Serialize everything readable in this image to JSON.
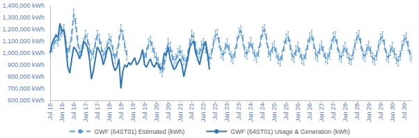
{
  "chart_data": {
    "type": "line",
    "categories": [
      "Jul 15",
      null,
      null,
      null,
      null,
      null,
      "Jan 16",
      null,
      null,
      null,
      null,
      null,
      "Jul 16",
      null,
      null,
      null,
      null,
      null,
      "Jan 17",
      null,
      null,
      null,
      null,
      null,
      "Jul 17",
      null,
      null,
      null,
      null,
      null,
      "Jan 18",
      null,
      null,
      null,
      null,
      null,
      "Jul 18",
      null,
      null,
      null,
      null,
      null,
      "Jan 19",
      null,
      null,
      null,
      null,
      null,
      "Jul 19",
      null,
      null,
      null,
      null,
      null,
      "Jan 20",
      null,
      null,
      null,
      null,
      null,
      "Jul 20",
      null,
      null,
      null,
      null,
      null,
      "Jan 21",
      null,
      null,
      null,
      null,
      null,
      "Jul 21",
      null,
      null,
      null,
      null,
      null,
      "Jan 22",
      null,
      null,
      null,
      null,
      null,
      "Jul 22",
      null,
      null,
      null,
      null,
      null,
      "Jan 23",
      null,
      null,
      null,
      null,
      null,
      "Jul 23",
      null,
      null,
      null,
      null,
      null,
      "Jan 24",
      null,
      null,
      null,
      null,
      null,
      "Jul 24",
      null,
      null,
      null,
      null,
      null,
      "Jan 25",
      null,
      null,
      null,
      null,
      null,
      "Jul 25",
      null,
      null,
      null,
      null,
      null,
      "Jan 26",
      null,
      null,
      null,
      null,
      null,
      "Jul 26",
      null,
      null,
      null,
      null,
      null,
      "Jan 27",
      null,
      null,
      null,
      null,
      null,
      "Jul 27",
      null,
      null,
      null,
      null,
      null,
      "Jan 28",
      null,
      null,
      null,
      null,
      null,
      "Jul 28",
      null,
      null,
      null,
      null,
      null,
      "Jan 29",
      null,
      null,
      null,
      null,
      null,
      "Jul 29",
      null,
      null,
      null,
      null,
      null,
      "Jan 30",
      null,
      null,
      null,
      null,
      null,
      "Jul 30",
      null,
      null,
      null,
      null
    ],
    "series": [
      {
        "name": "GWF (64ST01) Estimated (kWh)",
        "color": "#5b9bd5",
        "line_style": "dashed",
        "marker": "none",
        "values": [
          1000000,
          1050000,
          1080000,
          1120000,
          1100000,
          1150000,
          1180000,
          1200000,
          1100000,
          1000000,
          1050000,
          1150000,
          1330000,
          1250000,
          1100000,
          1000000,
          1020000,
          1080000,
          1150000,
          1120000,
          1030000,
          980000,
          1000000,
          1080000,
          1150000,
          1120000,
          1050000,
          980000,
          1000000,
          1060000,
          1120000,
          1100000,
          1020000,
          950000,
          1000000,
          1100000,
          1200000,
          1150000,
          1060000,
          980000,
          null,
          null,
          null,
          null,
          null,
          null,
          null,
          null,
          960000,
          1000000,
          1080000,
          1100000,
          1050000,
          1000000,
          960000,
          920000,
          870000,
          840000,
          900000,
          1000000,
          1080000,
          1050000,
          980000,
          930000,
          950000,
          1000000,
          1020000,
          980000,
          940000,
          920000,
          980000,
          1080000,
          1150000,
          1130000,
          1050000,
          980000,
          1000000,
          1060000,
          1080000,
          1040000,
          980000,
          950000,
          990000,
          1080000,
          1150000,
          1160000,
          1090000,
          1000000,
          980000,
          1040000,
          1080000,
          1030000,
          970000,
          950000,
          1000000,
          1090000,
          1170000,
          1190000,
          1110000,
          1010000,
          990000,
          1050000,
          1090000,
          1040000,
          980000,
          960000,
          1010000,
          1100000,
          1180000,
          1200000,
          1120000,
          1010000,
          980000,
          1040000,
          1060000,
          1000000,
          950000,
          930000,
          980000,
          1060000,
          1120000,
          1140000,
          1070000,
          980000,
          960000,
          1020000,
          1050000,
          1000000,
          950000,
          940000,
          990000,
          1070000,
          1130000,
          1150000,
          1080000,
          990000,
          970000,
          1030000,
          1060000,
          1010000,
          960000,
          950000,
          990000,
          1070000,
          1130000,
          1140000,
          1070000,
          980000,
          960000,
          1020000,
          1050000,
          1000000,
          950000,
          940000,
          990000,
          1070000,
          1130000,
          1150000,
          1080000,
          990000,
          970000,
          1030000,
          1060000,
          1010000,
          960000,
          940000,
          980000,
          1060000,
          1120000,
          1140000,
          1070000,
          980000,
          960000,
          1020000,
          1050000,
          1000000,
          950000,
          930000,
          980000,
          1060000,
          1110000,
          1130000,
          1060000,
          980000,
          960000
        ],
        "errors": [
          40000,
          40000,
          40000,
          40000,
          40000,
          40000,
          40000,
          40000,
          40000,
          40000,
          40000,
          40000,
          40000,
          40000,
          40000,
          40000,
          40000,
          40000,
          40000,
          40000,
          40000,
          40000,
          40000,
          40000,
          40000,
          40000,
          40000,
          40000,
          40000,
          40000,
          40000,
          40000,
          40000,
          40000,
          40000,
          40000,
          40000,
          40000,
          40000,
          40000,
          null,
          null,
          null,
          null,
          null,
          null,
          null,
          null,
          40000,
          40000,
          40000,
          40000,
          40000,
          40000,
          40000,
          40000,
          40000,
          40000,
          40000,
          40000,
          40000,
          40000,
          40000,
          40000,
          40000,
          40000,
          40000,
          40000,
          40000,
          40000,
          40000,
          40000,
          40000,
          40000,
          40000,
          40000,
          40000,
          40000,
          40000,
          40000,
          40000,
          40000,
          40000,
          40000,
          40000,
          40000,
          40000,
          40000,
          40000,
          40000,
          40000,
          40000,
          40000,
          40000,
          40000,
          40000,
          40000,
          40000,
          40000,
          40000,
          40000,
          40000,
          40000,
          40000,
          40000,
          40000,
          40000,
          40000,
          40000,
          40000,
          40000,
          40000,
          40000,
          40000,
          40000,
          40000,
          40000,
          40000,
          40000,
          40000,
          40000,
          40000,
          40000,
          40000,
          40000,
          40000,
          40000,
          40000,
          40000,
          40000,
          40000,
          40000,
          40000,
          40000,
          40000,
          40000,
          40000,
          40000,
          40000,
          40000,
          40000,
          40000,
          40000,
          40000,
          40000,
          40000,
          40000,
          40000,
          40000,
          40000,
          40000,
          40000,
          40000,
          40000,
          40000,
          40000,
          40000,
          40000,
          40000,
          40000,
          40000,
          40000,
          40000,
          40000,
          40000,
          40000,
          40000,
          40000,
          40000,
          40000,
          40000,
          40000,
          40000,
          40000,
          40000,
          40000,
          40000,
          40000,
          40000,
          40000,
          40000,
          40000,
          40000,
          40000,
          40000
        ]
      },
      {
        "name": "GWF (64ST01) Usage & Generation (kWh)",
        "color": "#2e75b6",
        "line_style": "solid",
        "marker": "none",
        "values": [
          1000000,
          1080000,
          1120000,
          1150000,
          1130000,
          1250000,
          1180000,
          1200000,
          1050000,
          880000,
          830000,
          950000,
          1050000,
          1030000,
          1000000,
          950000,
          1000000,
          1100000,
          1080000,
          1050000,
          950000,
          780000,
          850000,
          950000,
          1050000,
          1020000,
          980000,
          900000,
          950000,
          1030000,
          1050000,
          1000000,
          900000,
          850000,
          880000,
          950000,
          700000,
          850000,
          900000,
          880000,
          920000,
          900000,
          930000,
          960000,
          900000,
          920000,
          960000,
          1030000,
          900000,
          880000,
          920000,
          950000,
          900000,
          880000,
          920000,
          900000,
          860000,
          880000,
          1000000,
          980000,
          1050000,
          950000,
          900000,
          860000,
          880000,
          920000,
          950000,
          900000,
          800000,
          880000,
          950000,
          1050000,
          1080000,
          1100000,
          1000000,
          950000,
          900000,
          980000,
          1050000,
          1100000,
          1000000,
          860000,
          null,
          null,
          null,
          null,
          null,
          null,
          null,
          null,
          null,
          null,
          null,
          null,
          null,
          null,
          null,
          null,
          null,
          null,
          null,
          null,
          null,
          null,
          null,
          null,
          null,
          null,
          null,
          null,
          null,
          null,
          null,
          null,
          null,
          null,
          null,
          null,
          null,
          null,
          null,
          null,
          null,
          null,
          null,
          null,
          null,
          null,
          null,
          null,
          null,
          null,
          null,
          null,
          null,
          null,
          null,
          null,
          null,
          null,
          null,
          null,
          null,
          null,
          null,
          null,
          null,
          null,
          null,
          null,
          null,
          null,
          null,
          null,
          null,
          null,
          null,
          null,
          null,
          null,
          null,
          null,
          null,
          null,
          null,
          null,
          null,
          null,
          null,
          null,
          null,
          null,
          null,
          null,
          null,
          null,
          null,
          null,
          null,
          null,
          null,
          null,
          null,
          null,
          null
        ]
      }
    ],
    "ylim": [
      600000,
      1400000
    ],
    "yticks": [
      {
        "value": 600000,
        "label": "600,000 kWh"
      },
      {
        "value": 700000,
        "label": "700,000 kWh"
      },
      {
        "value": 800000,
        "label": "800,000 kWh"
      },
      {
        "value": 900000,
        "label": "900,000 kWh"
      },
      {
        "value": 1000000,
        "label": "1,000,000 kWh"
      },
      {
        "value": 1100000,
        "label": "1,100,000 kWh"
      },
      {
        "value": 1200000,
        "label": "1,200,000 kWh"
      },
      {
        "value": 1300000,
        "label": "1,300,000 kWh"
      },
      {
        "value": 1400000,
        "label": "1,400,000 kWh"
      }
    ],
    "grid": false,
    "legend": "bottom"
  }
}
